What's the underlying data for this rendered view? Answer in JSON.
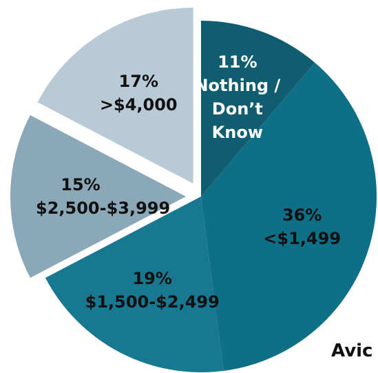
{
  "chart_data": {
    "type": "pie",
    "categories": [
      "Nothing / Don’t Know",
      "<$1,499",
      "$1,500-$2,499",
      "$2,500-$3,999",
      ">$4,000"
    ],
    "values": [
      11,
      36,
      19,
      15,
      17
    ],
    "value_labels": [
      "11%",
      "36%",
      "19%",
      "15%",
      "17%"
    ],
    "colors": [
      "#0f5d6f",
      "#0e6f86",
      "#187892",
      "#8ba8b8",
      "#b8cad5"
    ],
    "label_colors": [
      "#ffffff",
      "#111111",
      "#111111",
      "#111111",
      "#111111"
    ],
    "annotation": "Avic"
  }
}
